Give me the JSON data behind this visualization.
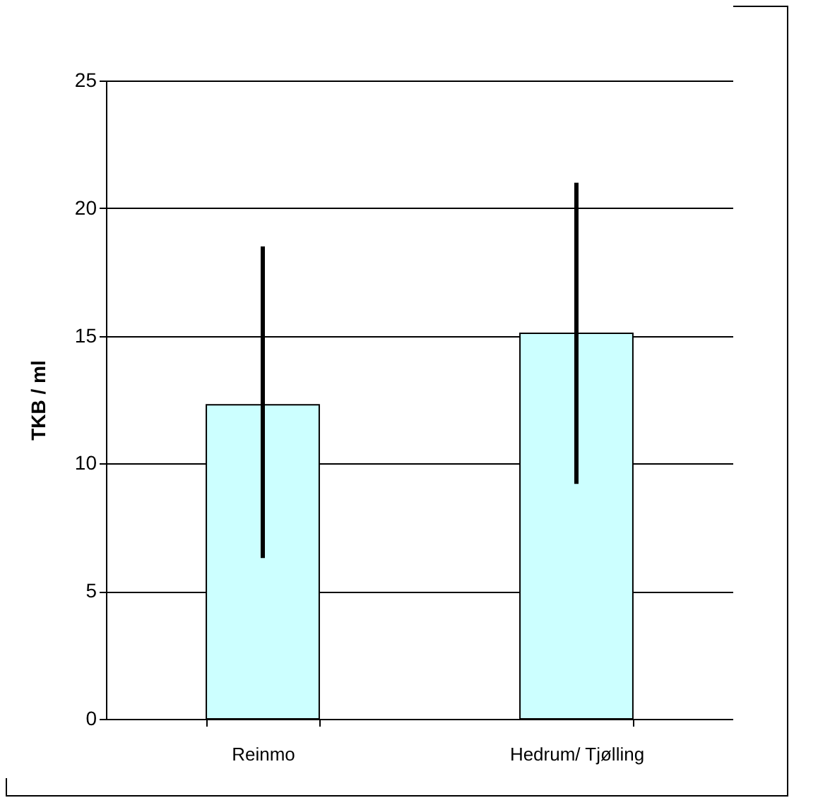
{
  "chart_data": {
    "type": "bar",
    "ylabel": "TKB / ml",
    "categories": [
      "Reinmo",
      "Hedrum/ Tjølling"
    ],
    "values": [
      12.3,
      15.1
    ],
    "color": "#ccffff",
    "errors": [
      [
        6.3,
        18.5
      ],
      [
        9.2,
        21.0
      ]
    ],
    "ylim": [
      0,
      25
    ],
    "yticks": [
      0,
      5,
      10,
      15,
      20,
      25
    ],
    "grid": "y"
  }
}
